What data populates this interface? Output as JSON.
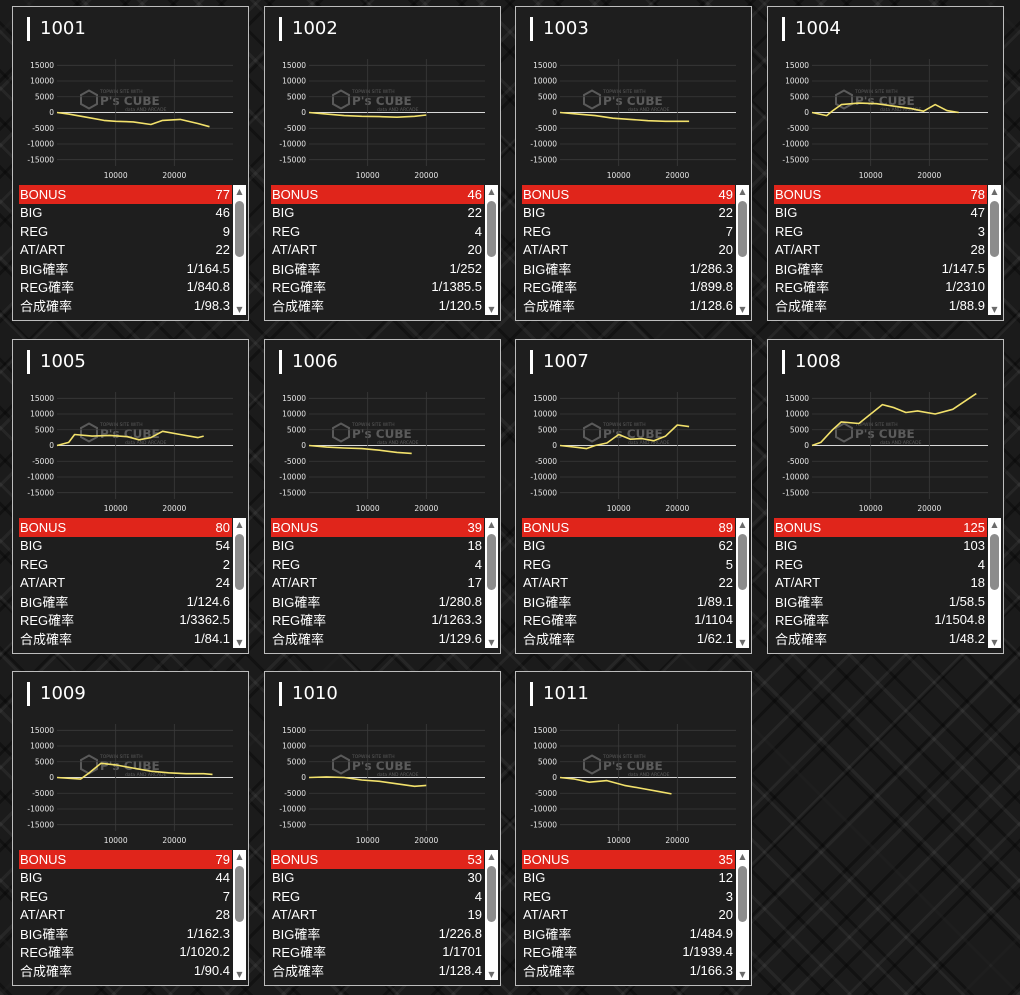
{
  "watermark": {
    "brand": "P's CUBE",
    "tagline": "TOPWIN SITE WITH",
    "sub": "data AND ARCADE"
  },
  "stat_labels": [
    "BONUS",
    "BIG",
    "REG",
    "AT/ART",
    "BIG確率",
    "REG確率",
    "合成確率"
  ],
  "colors": {
    "line": "#f2e16b",
    "bonus_bg": "#e0251b",
    "card_bg": "#1e1e1e",
    "grid": "#3a3a3a"
  },
  "chart_data": [
    {
      "type": "line",
      "title": "1001",
      "yticks": [
        15000,
        10000,
        5000,
        0,
        -5000,
        -10000,
        -15000
      ],
      "xticks": [
        10000,
        20000
      ],
      "ylim": [
        -17000,
        17000
      ],
      "xlim": [
        0,
        30000
      ],
      "x": [
        0,
        2000,
        5000,
        8000,
        10000,
        13000,
        16000,
        18000,
        21000,
        24000,
        26000
      ],
      "y": [
        0,
        -500,
        -1500,
        -2500,
        -2800,
        -3000,
        -3800,
        -2500,
        -2200,
        -3500,
        -4500
      ],
      "stats": {
        "BONUS": "77",
        "BIG": "46",
        "REG": "9",
        "AT/ART": "22",
        "BIG確率": "1/164.5",
        "REG確率": "1/840.8",
        "合成確率": "1/98.3"
      }
    },
    {
      "type": "line",
      "title": "1002",
      "yticks": [
        15000,
        10000,
        5000,
        0,
        -5000,
        -10000,
        -15000
      ],
      "xticks": [
        10000,
        20000
      ],
      "ylim": [
        -17000,
        17000
      ],
      "xlim": [
        0,
        30000
      ],
      "x": [
        0,
        3000,
        6000,
        9000,
        12000,
        15000,
        18000,
        20000
      ],
      "y": [
        0,
        -500,
        -1000,
        -1200,
        -1300,
        -1500,
        -1200,
        -800
      ],
      "stats": {
        "BONUS": "46",
        "BIG": "22",
        "REG": "4",
        "AT/ART": "20",
        "BIG確率": "1/252",
        "REG確率": "1/1385.5",
        "合成確率": "1/120.5"
      }
    },
    {
      "type": "line",
      "title": "1003",
      "yticks": [
        15000,
        10000,
        5000,
        0,
        -5000,
        -10000,
        -15000
      ],
      "xticks": [
        10000,
        20000
      ],
      "ylim": [
        -17000,
        17000
      ],
      "xlim": [
        0,
        30000
      ],
      "x": [
        0,
        3000,
        6000,
        9000,
        12000,
        15000,
        18000,
        22000
      ],
      "y": [
        0,
        -500,
        -1000,
        -1800,
        -2200,
        -2600,
        -2800,
        -2800
      ],
      "stats": {
        "BONUS": "49",
        "BIG": "22",
        "REG": "7",
        "AT/ART": "20",
        "BIG確率": "1/286.3",
        "REG確率": "1/899.8",
        "合成確率": "1/128.6"
      }
    },
    {
      "type": "line",
      "title": "1004",
      "yticks": [
        15000,
        10000,
        5000,
        0,
        -5000,
        -10000,
        -15000
      ],
      "xticks": [
        10000,
        20000
      ],
      "ylim": [
        -17000,
        17000
      ],
      "xlim": [
        0,
        30000
      ],
      "x": [
        0,
        2500,
        3500,
        5000,
        8000,
        11000,
        14000,
        17000,
        19000,
        21000,
        23000,
        25000
      ],
      "y": [
        0,
        -1000,
        500,
        2500,
        3000,
        2800,
        2000,
        1200,
        400,
        2500,
        600,
        0
      ],
      "stats": {
        "BONUS": "78",
        "BIG": "47",
        "REG": "3",
        "AT/ART": "28",
        "BIG確率": "1/147.5",
        "REG確率": "1/2310",
        "合成確率": "1/88.9"
      }
    },
    {
      "type": "line",
      "title": "1005",
      "yticks": [
        15000,
        10000,
        5000,
        0,
        -5000,
        -10000,
        -15000
      ],
      "xticks": [
        10000,
        20000
      ],
      "ylim": [
        -17000,
        17000
      ],
      "xlim": [
        0,
        30000
      ],
      "x": [
        0,
        2000,
        3000,
        6000,
        9000,
        12000,
        14000,
        16000,
        18000,
        21000,
        24000,
        25000
      ],
      "y": [
        0,
        1000,
        3500,
        3000,
        3200,
        2800,
        1800,
        2500,
        4500,
        3500,
        2500,
        3000
      ],
      "stats": {
        "BONUS": "80",
        "BIG": "54",
        "REG": "2",
        "AT/ART": "24",
        "BIG確率": "1/124.6",
        "REG確率": "1/3362.5",
        "合成確率": "1/84.1"
      }
    },
    {
      "type": "line",
      "title": "1006",
      "yticks": [
        15000,
        10000,
        5000,
        0,
        -5000,
        -10000,
        -15000
      ],
      "xticks": [
        10000,
        20000
      ],
      "ylim": [
        -17000,
        17000
      ],
      "xlim": [
        0,
        30000
      ],
      "x": [
        0,
        3000,
        6000,
        9000,
        12000,
        15000,
        17500
      ],
      "y": [
        0,
        -500,
        -800,
        -1000,
        -1500,
        -2200,
        -2500
      ],
      "stats": {
        "BONUS": "39",
        "BIG": "18",
        "REG": "4",
        "AT/ART": "17",
        "BIG確率": "1/280.8",
        "REG確率": "1/1263.3",
        "合成確率": "1/129.6"
      }
    },
    {
      "type": "line",
      "title": "1007",
      "yticks": [
        15000,
        10000,
        5000,
        0,
        -5000,
        -10000,
        -15000
      ],
      "xticks": [
        10000,
        20000
      ],
      "ylim": [
        -17000,
        17000
      ],
      "xlim": [
        0,
        30000
      ],
      "x": [
        0,
        3000,
        4500,
        6000,
        8000,
        10000,
        12000,
        14000,
        16000,
        18000,
        20000,
        22000
      ],
      "y": [
        0,
        -600,
        -1000,
        0,
        800,
        3500,
        2000,
        2200,
        1500,
        3000,
        6500,
        6000
      ],
      "stats": {
        "BONUS": "89",
        "BIG": "62",
        "REG": "5",
        "AT/ART": "22",
        "BIG確率": "1/89.1",
        "REG確率": "1/1104",
        "合成確率": "1/62.1"
      }
    },
    {
      "type": "line",
      "title": "1008",
      "yticks": [
        15000,
        10000,
        5000,
        0,
        -5000,
        -10000,
        -15000
      ],
      "xticks": [
        10000,
        20000
      ],
      "ylim": [
        -17000,
        17000
      ],
      "xlim": [
        0,
        30000
      ],
      "x": [
        0,
        1500,
        3500,
        5000,
        8000,
        10000,
        12000,
        14000,
        16000,
        18000,
        21000,
        24000,
        26000,
        28000
      ],
      "y": [
        0,
        1000,
        5000,
        7500,
        7000,
        10000,
        13000,
        12000,
        10500,
        11000,
        10000,
        11500,
        14000,
        16500
      ],
      "stats": {
        "BONUS": "125",
        "BIG": "103",
        "REG": "4",
        "AT/ART": "18",
        "BIG確率": "1/58.5",
        "REG確率": "1/1504.8",
        "合成確率": "1/48.2"
      }
    },
    {
      "type": "line",
      "title": "1009",
      "yticks": [
        15000,
        10000,
        5000,
        0,
        -5000,
        -10000,
        -15000
      ],
      "xticks": [
        10000,
        20000
      ],
      "ylim": [
        -17000,
        17000
      ],
      "xlim": [
        0,
        30000
      ],
      "x": [
        0,
        4000,
        5500,
        7500,
        10000,
        13000,
        16000,
        19000,
        22000,
        25000,
        26500
      ],
      "y": [
        0,
        -500,
        1500,
        4500,
        4000,
        3000,
        2000,
        1500,
        1200,
        1200,
        1000
      ],
      "stats": {
        "BONUS": "79",
        "BIG": "44",
        "REG": "7",
        "AT/ART": "28",
        "BIG確率": "1/162.3",
        "REG確率": "1/1020.2",
        "合成確率": "1/90.4"
      }
    },
    {
      "type": "line",
      "title": "1010",
      "yticks": [
        15000,
        10000,
        5000,
        0,
        -5000,
        -10000,
        -15000
      ],
      "xticks": [
        10000,
        20000
      ],
      "ylim": [
        -17000,
        17000
      ],
      "xlim": [
        0,
        30000
      ],
      "x": [
        0,
        3000,
        6000,
        9000,
        12000,
        15000,
        18000,
        20000
      ],
      "y": [
        0,
        200,
        0,
        -800,
        -1200,
        -2000,
        -2800,
        -2500
      ],
      "stats": {
        "BONUS": "53",
        "BIG": "30",
        "REG": "4",
        "AT/ART": "19",
        "BIG確率": "1/226.8",
        "REG確率": "1/1701",
        "合成確率": "1/128.4"
      }
    },
    {
      "type": "line",
      "title": "1011",
      "yticks": [
        15000,
        10000,
        5000,
        0,
        -5000,
        -10000,
        -15000
      ],
      "xticks": [
        10000,
        20000
      ],
      "ylim": [
        -17000,
        17000
      ],
      "xlim": [
        0,
        30000
      ],
      "x": [
        0,
        2500,
        5000,
        8000,
        11000,
        14000,
        17000,
        19000
      ],
      "y": [
        0,
        -500,
        -1500,
        -1000,
        -2500,
        -3500,
        -4500,
        -5200
      ],
      "stats": {
        "BONUS": "35",
        "BIG": "12",
        "REG": "3",
        "AT/ART": "20",
        "BIG確率": "1/484.9",
        "REG確率": "1/1939.4",
        "合成確率": "1/166.3"
      }
    }
  ]
}
